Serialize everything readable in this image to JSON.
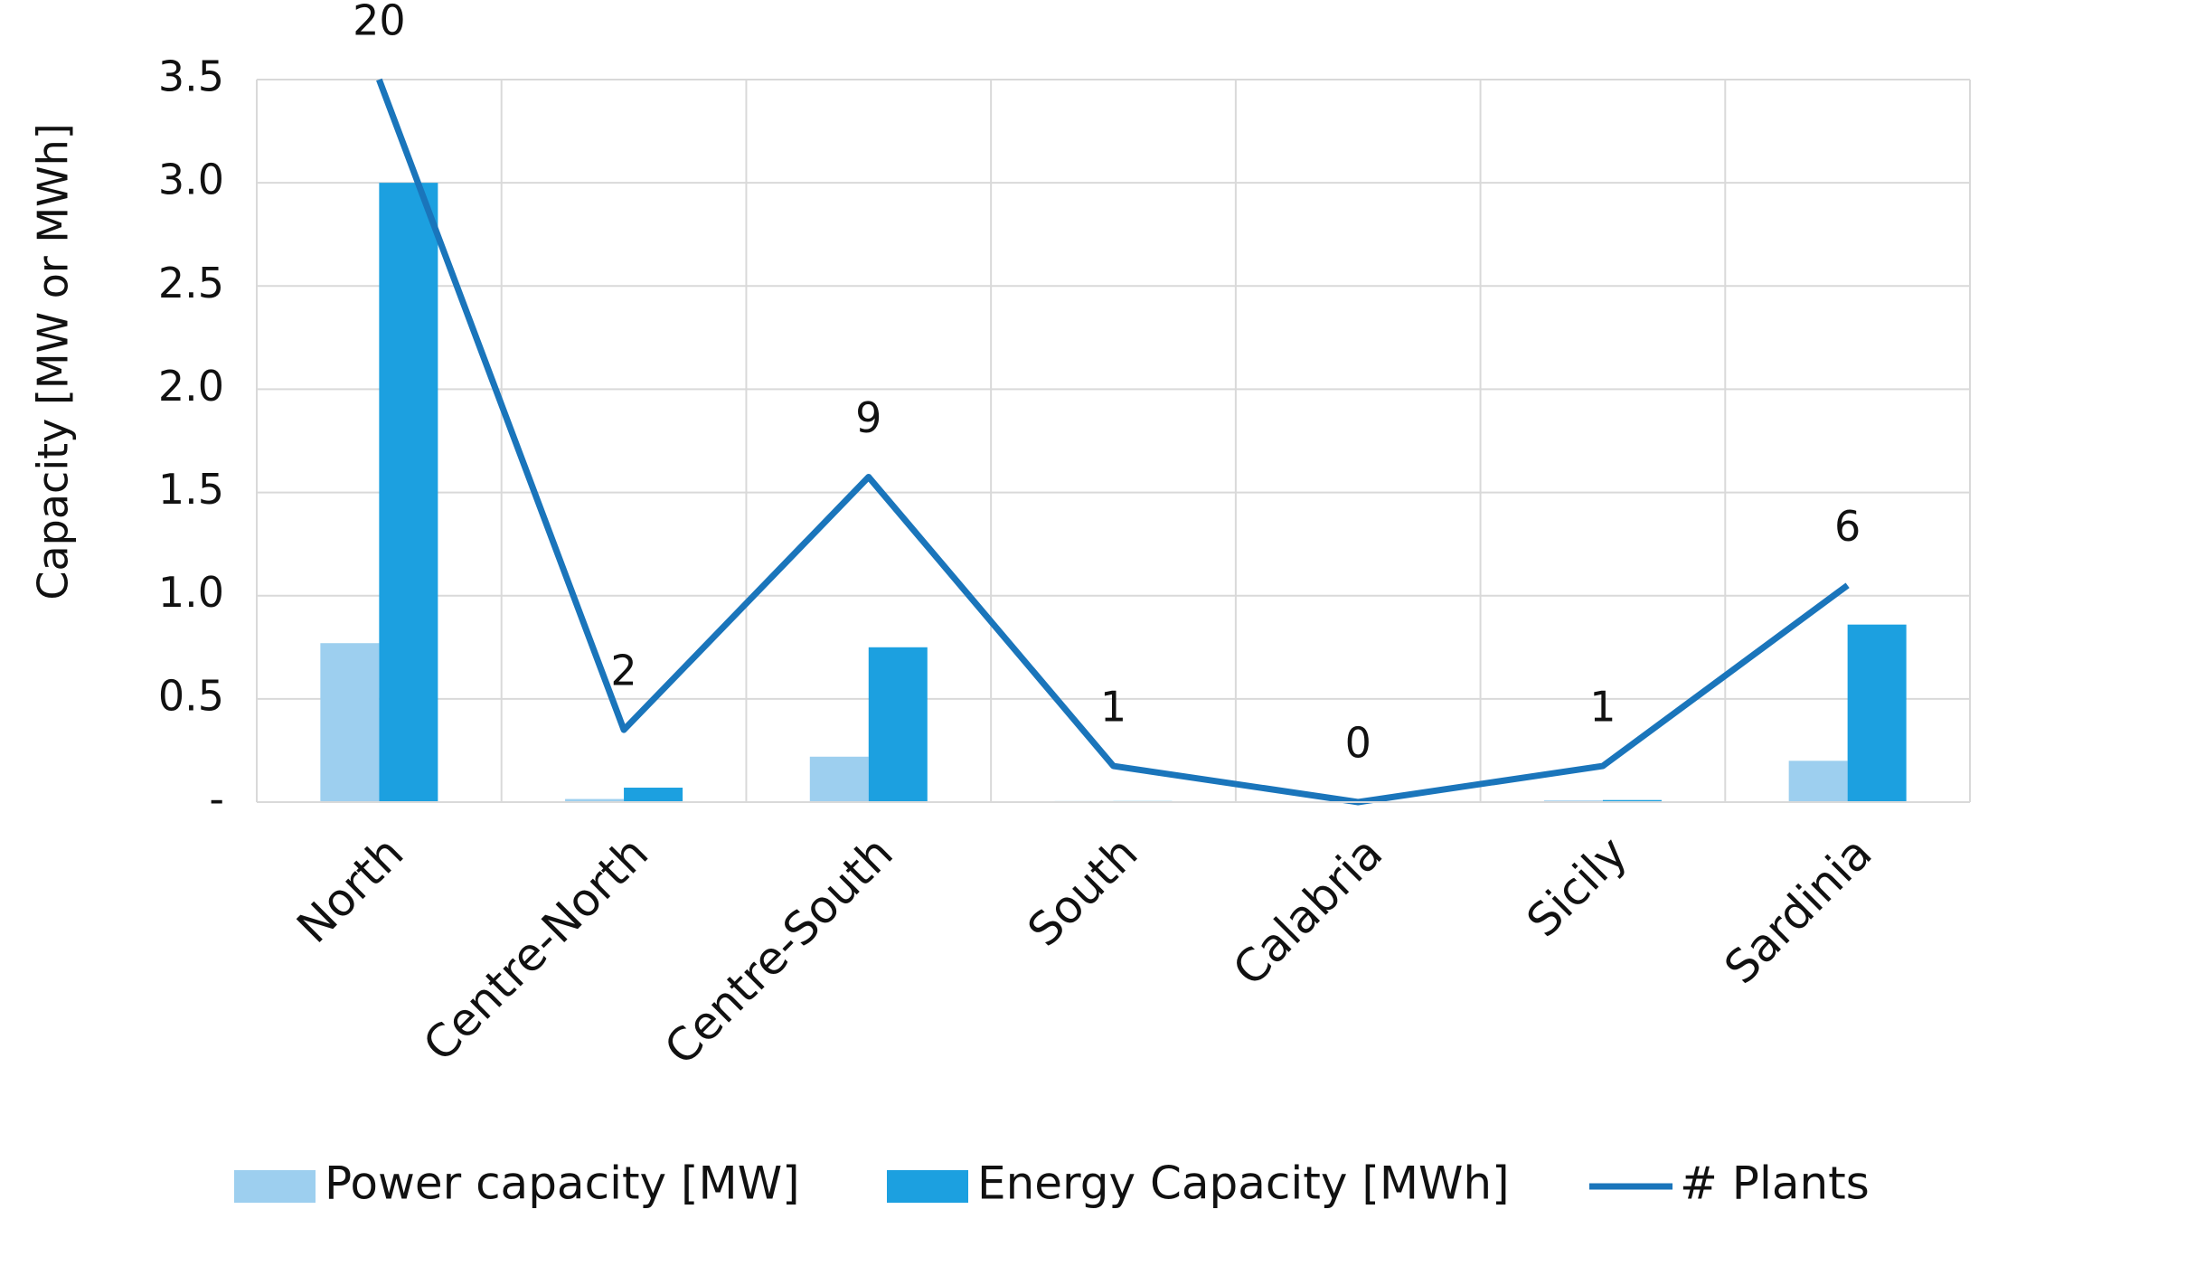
{
  "chart_data": {
    "type": "bar",
    "y_axis_label": "Capacity [MW or MWh]",
    "categories": [
      "North",
      "Centre-North",
      "Centre-South",
      "South",
      "Calabria",
      "Sicily",
      "Sardinia"
    ],
    "series": [
      {
        "name": "Power capacity [MW]",
        "color": "#9dcfef",
        "type": "bar",
        "values": [
          0.77,
          0.015,
          0.22,
          0.005,
          0,
          0.008,
          0.2
        ]
      },
      {
        "name": "Energy Capacity [MWh]",
        "color": "#1ca0e0",
        "type": "bar",
        "values": [
          3.0,
          0.07,
          0.75,
          0.005,
          0,
          0.01,
          0.86
        ]
      },
      {
        "name": "# Plants",
        "color": "#1a75bb",
        "type": "line",
        "axis": "y2",
        "values": [
          20,
          2,
          9,
          1,
          0,
          1,
          6
        ]
      }
    ],
    "ylim": [
      0,
      3.5
    ],
    "yticks": [
      {
        "value": 0,
        "label": "-"
      },
      0.5,
      {
        "value": 1,
        "label": "1.0"
      },
      1.5,
      {
        "value": 2,
        "label": "2.0"
      },
      2.5,
      {
        "value": 3,
        "label": "3.0"
      },
      3.5
    ],
    "y2lim": [
      0,
      20
    ],
    "grid": true,
    "legend": "bottom"
  }
}
